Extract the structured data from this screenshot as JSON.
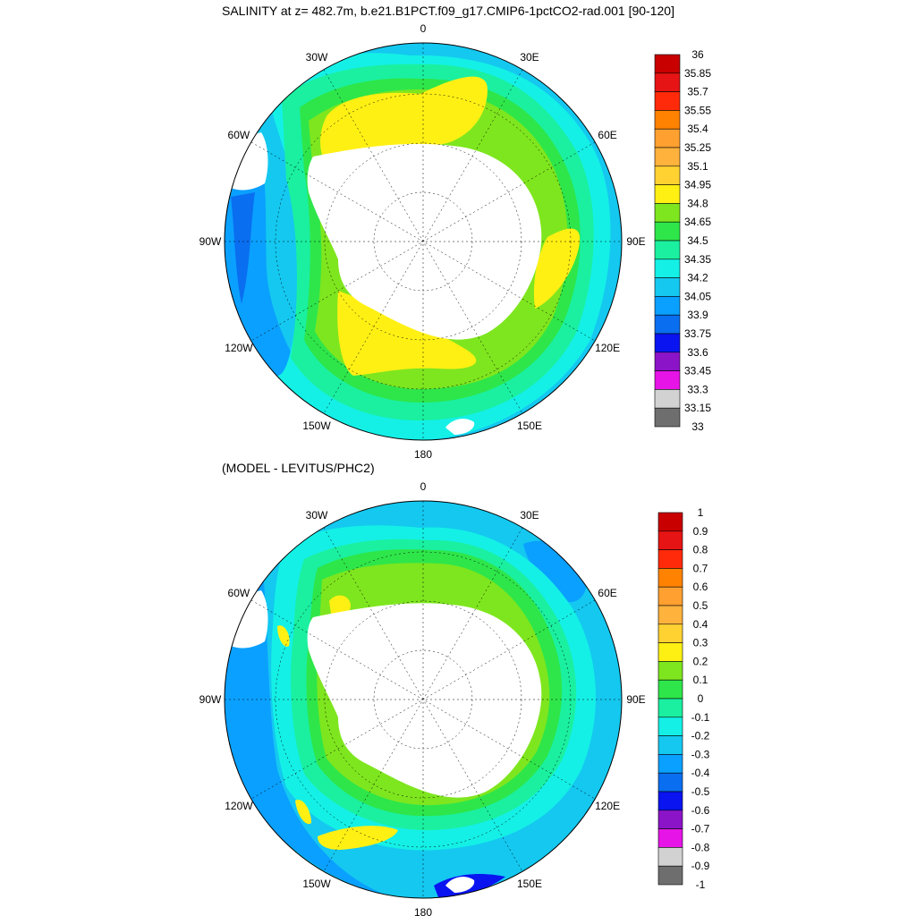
{
  "top_panel": {
    "title": "SALINITY at z= 482.7m, b.e21.B1PCT.f09_g17.CMIP6-1pctCO2-rad.001 [90-120]",
    "lon_labels": [
      "0",
      "30E",
      "60E",
      "90E",
      "120E",
      "150E",
      "180",
      "150W",
      "120W",
      "90W",
      "60W",
      "30W"
    ],
    "colorbar": {
      "labels": [
        "36",
        "35.85",
        "35.7",
        "35.55",
        "35.4",
        "35.25",
        "35.1",
        "34.95",
        "34.8",
        "34.65",
        "34.5",
        "34.35",
        "34.2",
        "34.05",
        "33.9",
        "33.75",
        "33.6",
        "33.45",
        "33.3",
        "33.15",
        "33"
      ],
      "colors": [
        "#c80000",
        "#e61414",
        "#ff2a0a",
        "#ff8200",
        "#ffa030",
        "#ffb23c",
        "#ffd232",
        "#fff014",
        "#7ee61e",
        "#2ee64a",
        "#1af0a0",
        "#14f0e6",
        "#14c8f0",
        "#0aa0ff",
        "#0a6ef0",
        "#0a14f0",
        "#8c14c8",
        "#e614e6",
        "#d2d2d2",
        "#6e6e6e"
      ]
    }
  },
  "bottom_panel": {
    "title": "(MODEL - LEVITUS/PHC2)",
    "lon_labels": [
      "0",
      "30E",
      "60E",
      "90E",
      "120E",
      "150E",
      "180",
      "150W",
      "120W",
      "90W",
      "60W",
      "30W"
    ],
    "colorbar": {
      "labels": [
        "1",
        "0.9",
        "0.8",
        "0.7",
        "0.6",
        "0.5",
        "0.4",
        "0.3",
        "0.2",
        "0.1",
        "0",
        "-0.1",
        "-0.2",
        "-0.3",
        "-0.4",
        "-0.5",
        "-0.6",
        "-0.7",
        "-0.8",
        "-0.9",
        "-1"
      ],
      "colors": [
        "#c80000",
        "#e61414",
        "#ff2a0a",
        "#ff8200",
        "#ffa030",
        "#ffb23c",
        "#ffd232",
        "#fff014",
        "#7ee61e",
        "#2ee64a",
        "#1af0a0",
        "#14f0e6",
        "#14c8f0",
        "#0aa0ff",
        "#0a6ef0",
        "#0a14f0",
        "#8c14c8",
        "#e614e6",
        "#d2d2d2",
        "#6e6e6e"
      ]
    }
  }
}
